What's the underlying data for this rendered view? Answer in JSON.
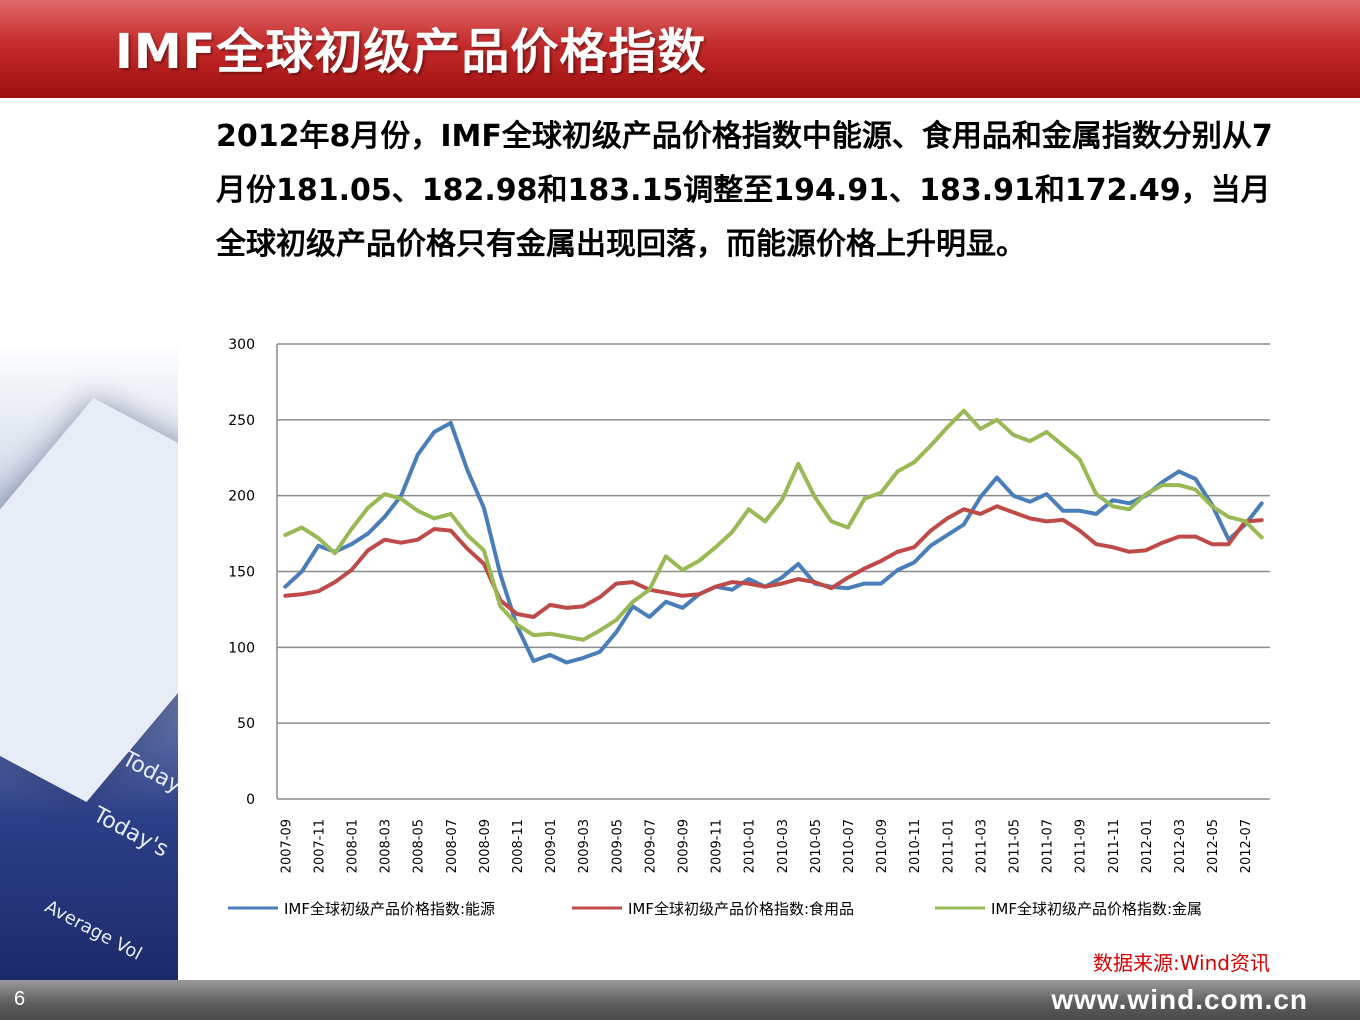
{
  "header": {
    "title": "IMF全球初级产品价格指数"
  },
  "body_text": "2012年8月份，IMF全球初级产品价格指数中能源、食用品和金属指数分别从7月份181.05、182.98和183.15调整至194.91、183.91和172.49，当月全球初级产品价格只有金属出现回落，而能源价格上升明显。",
  "source": "数据来源:Wind资讯",
  "footer": {
    "page_number": "6",
    "site": "www.wind.com.cn"
  },
  "colors": {
    "header_red": "#c52b2b",
    "energy": "#4a7ebb",
    "food": "#be4b48",
    "metal": "#98b954",
    "grid": "#8c8c8c",
    "source": "#d40000"
  },
  "chart_data": {
    "type": "line",
    "y_ticks": [
      "0",
      "50",
      "100",
      "150",
      "200",
      "250",
      "300"
    ],
    "ylim": [
      0,
      300
    ],
    "grid": true,
    "legend_position": "bottom",
    "x_tick_labels": [
      "2007-09",
      "2007-11",
      "2008-01",
      "2008-03",
      "2008-05",
      "2008-07",
      "2008-09",
      "2008-11",
      "2009-01",
      "2009-03",
      "2009-05",
      "2009-07",
      "2009-09",
      "2009-11",
      "2010-01",
      "2010-03",
      "2010-05",
      "2010-07",
      "2010-09",
      "2010-11",
      "2011-01",
      "2011-03",
      "2011-05",
      "2011-07",
      "2011-09",
      "2011-11",
      "2012-01",
      "2012-03",
      "2012-05",
      "2012-07"
    ],
    "x": [
      "2007-09",
      "2007-10",
      "2007-11",
      "2007-12",
      "2008-01",
      "2008-02",
      "2008-03",
      "2008-04",
      "2008-05",
      "2008-06",
      "2008-07",
      "2008-08",
      "2008-09",
      "2008-10",
      "2008-11",
      "2008-12",
      "2009-01",
      "2009-02",
      "2009-03",
      "2009-04",
      "2009-05",
      "2009-06",
      "2009-07",
      "2009-08",
      "2009-09",
      "2009-10",
      "2009-11",
      "2009-12",
      "2010-01",
      "2010-02",
      "2010-03",
      "2010-04",
      "2010-05",
      "2010-06",
      "2010-07",
      "2010-08",
      "2010-09",
      "2010-10",
      "2010-11",
      "2010-12",
      "2011-01",
      "2011-02",
      "2011-03",
      "2011-04",
      "2011-05",
      "2011-06",
      "2011-07",
      "2011-08",
      "2011-09",
      "2011-10",
      "2011-11",
      "2011-12",
      "2012-01",
      "2012-02",
      "2012-03",
      "2012-04",
      "2012-05",
      "2012-06",
      "2012-07",
      "2012-08"
    ],
    "series": [
      {
        "name": "IMF全球初级产品价格指数:能源",
        "color": "#4a7ebb",
        "values": [
          140,
          150,
          167,
          163,
          168,
          175,
          186,
          200,
          227,
          242,
          248,
          217,
          192,
          148,
          114,
          91,
          95,
          90,
          93,
          97,
          110,
          127,
          120,
          130,
          126,
          135,
          140,
          138,
          145,
          140,
          146,
          155,
          142,
          140,
          139,
          142,
          142,
          151,
          156,
          167,
          174,
          181,
          199,
          212,
          200,
          196,
          201,
          190,
          190,
          188,
          197,
          195,
          200,
          209,
          216,
          211,
          194,
          171,
          181,
          194.91
        ]
      },
      {
        "name": "IMF全球初级产品价格指数:食用品",
        "color": "#be4b48",
        "values": [
          134,
          135,
          137,
          143,
          151,
          164,
          171,
          169,
          171,
          178,
          177,
          165,
          155,
          131,
          122,
          120,
          128,
          126,
          127,
          133,
          142,
          143,
          138,
          136,
          134,
          135,
          140,
          143,
          142,
          140,
          142,
          145,
          143,
          139,
          146,
          152,
          157,
          163,
          166,
          177,
          185,
          191,
          188,
          193,
          189,
          185,
          183,
          184,
          177,
          168,
          166,
          163,
          164,
          169,
          173,
          173,
          168,
          168,
          182.98,
          183.91
        ]
      },
      {
        "name": "IMF全球初级产品价格指数:金属",
        "color": "#98b954",
        "values": [
          174,
          179,
          172,
          162,
          178,
          192,
          201,
          198,
          190,
          185,
          188,
          174,
          164,
          127,
          115,
          108,
          109,
          107,
          105,
          111,
          118,
          130,
          138,
          160,
          151,
          157,
          166,
          176,
          191,
          183,
          197,
          221,
          199,
          183,
          179,
          198,
          202,
          216,
          222,
          233,
          245,
          256,
          244,
          250,
          240,
          236,
          242,
          233,
          224,
          201,
          193,
          191,
          201,
          207,
          207,
          204,
          193,
          186,
          183.15,
          172.49
        ]
      }
    ]
  }
}
